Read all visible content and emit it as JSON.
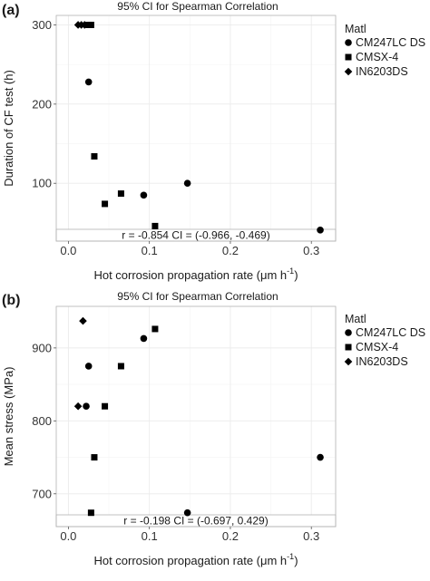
{
  "chart_data": [
    {
      "panel_label": "(a)",
      "type": "scatter",
      "title": "95% CI for Spearman Correlation",
      "xlabel": "Hot corrosion propagation rate (μm h",
      "xlabel_sup": "-1",
      "xlabel_close": ")",
      "ylabel": "Duration of CF test (h)",
      "xlim": [
        -0.015,
        0.33
      ],
      "ylim": [
        27,
        312
      ],
      "xticks": [
        0.0,
        0.1,
        0.2,
        0.3
      ],
      "xtick_labels": [
        "0.0",
        "0.1",
        "0.2",
        "0.3"
      ],
      "yticks": [
        100,
        200,
        300
      ],
      "ytick_labels": [
        "100",
        "200",
        "300"
      ],
      "grid": true,
      "legend_position": "right",
      "legend_title": "Matl",
      "series": [
        {
          "name": "CM247LC DS",
          "marker": "circle",
          "points": [
            [
              0.025,
              228
            ],
            [
              0.093,
              85
            ],
            [
              0.147,
              100
            ],
            [
              0.311,
              41
            ]
          ]
        },
        {
          "name": "CMSX-4",
          "marker": "square",
          "points": [
            [
              0.025,
              300
            ],
            [
              0.028,
              300
            ],
            [
              0.032,
              134
            ],
            [
              0.045,
              74
            ],
            [
              0.065,
              87
            ],
            [
              0.107,
              46
            ]
          ]
        },
        {
          "name": "IN6203DS",
          "marker": "diamond",
          "points": [
            [
              0.012,
              300
            ],
            [
              0.016,
              300
            ],
            [
              0.02,
              300
            ]
          ]
        }
      ],
      "annotation": "r = -0.854   CI = (-0.966, -0.469)"
    },
    {
      "panel_label": "(b)",
      "type": "scatter",
      "title": "95% CI for Spearman Correlation",
      "xlabel": "Hot corrosion propagation rate (μm h",
      "xlabel_sup": "-1",
      "xlabel_close": ")",
      "ylabel": "Mean stress (MPa)",
      "xlim": [
        -0.015,
        0.33
      ],
      "ylim": [
        655,
        957
      ],
      "xticks": [
        0.0,
        0.1,
        0.2,
        0.3
      ],
      "xtick_labels": [
        "0.0",
        "0.1",
        "0.2",
        "0.3"
      ],
      "yticks": [
        700,
        800,
        900
      ],
      "ytick_labels": [
        "700",
        "800",
        "900"
      ],
      "grid": true,
      "legend_position": "right",
      "legend_title": "Matl",
      "series": [
        {
          "name": "CM247LC DS",
          "marker": "circle",
          "points": [
            [
              0.022,
              820
            ],
            [
              0.025,
              875
            ],
            [
              0.093,
              913
            ],
            [
              0.147,
              674
            ],
            [
              0.311,
              750
            ]
          ]
        },
        {
          "name": "CMSX-4",
          "marker": "square",
          "points": [
            [
              0.028,
              674
            ],
            [
              0.032,
              750
            ],
            [
              0.045,
              820
            ],
            [
              0.065,
              875
            ],
            [
              0.107,
              926
            ]
          ]
        },
        {
          "name": "IN6203DS",
          "marker": "diamond",
          "points": [
            [
              0.012,
              820
            ],
            [
              0.018,
              937
            ]
          ]
        }
      ],
      "annotation": "r = -0.198   CI = (-0.697, 0.429)"
    }
  ]
}
